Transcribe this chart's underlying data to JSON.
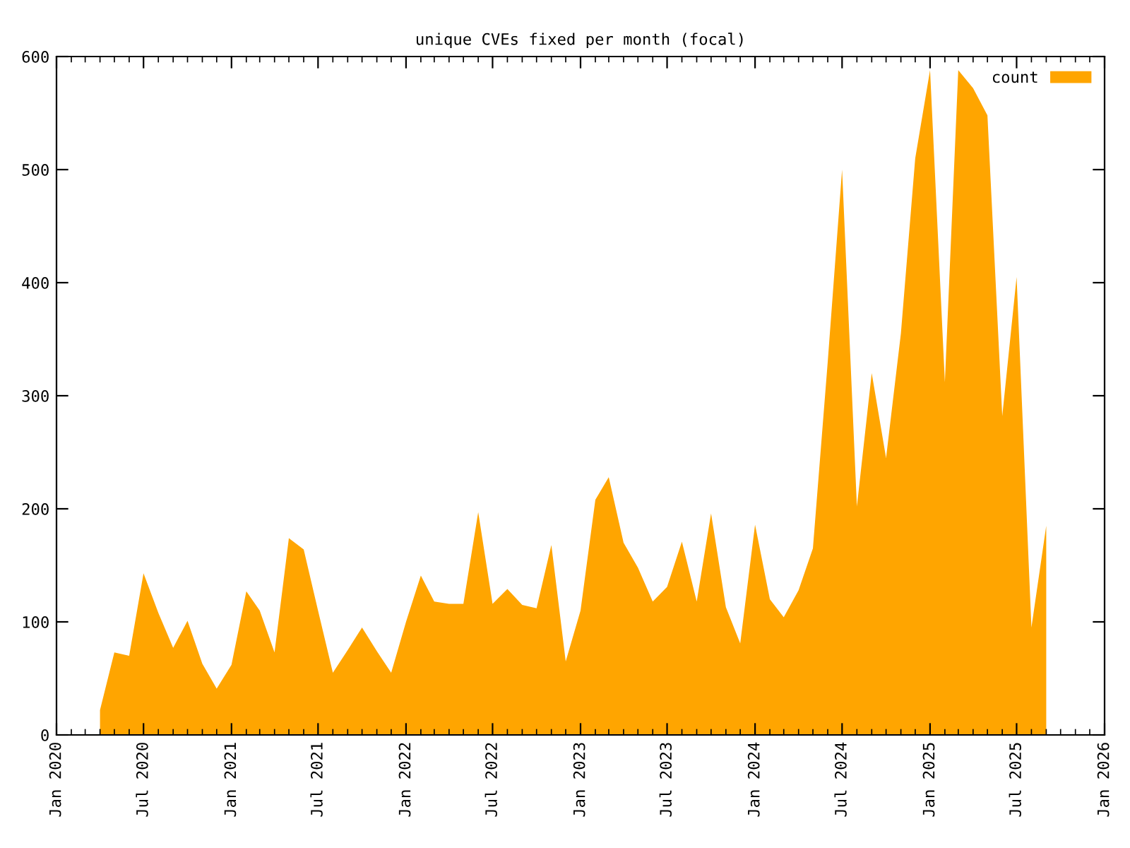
{
  "chart_data": {
    "type": "area",
    "title": "unique CVEs fixed per month (focal)",
    "x": [
      "2020-04",
      "2020-05",
      "2020-06",
      "2020-07",
      "2020-08",
      "2020-09",
      "2020-10",
      "2020-11",
      "2020-12",
      "2021-01",
      "2021-02",
      "2021-03",
      "2021-04",
      "2021-05",
      "2021-06",
      "2021-07",
      "2021-08",
      "2021-09",
      "2021-10",
      "2021-11",
      "2021-12",
      "2022-01",
      "2022-02",
      "2022-03",
      "2022-04",
      "2022-05",
      "2022-06",
      "2022-07",
      "2022-08",
      "2022-09",
      "2022-10",
      "2022-11",
      "2022-12",
      "2023-01",
      "2023-02",
      "2023-03",
      "2023-04",
      "2023-05",
      "2023-06",
      "2023-07",
      "2023-08",
      "2023-09",
      "2023-10",
      "2023-11",
      "2023-12",
      "2024-01",
      "2024-02",
      "2024-03",
      "2024-04",
      "2024-05",
      "2024-06",
      "2024-07",
      "2024-08",
      "2024-09",
      "2024-10",
      "2024-11",
      "2024-12",
      "2025-01",
      "2025-02",
      "2025-03",
      "2025-04",
      "2025-05",
      "2025-06",
      "2025-07",
      "2025-08",
      "2025-09"
    ],
    "series": [
      {
        "name": "count",
        "color": "#ffa500",
        "values": [
          22,
          73,
          70,
          143,
          108,
          77,
          101,
          63,
          41,
          62,
          127,
          110,
          73,
          174,
          164,
          110,
          55,
          75,
          95,
          74,
          55,
          100,
          141,
          118,
          116,
          116,
          197,
          116,
          129,
          115,
          112,
          168,
          65,
          110,
          208,
          228,
          170,
          148,
          118,
          131,
          171,
          118,
          196,
          113,
          81,
          186,
          120,
          104,
          128,
          165,
          330,
          500,
          202,
          320,
          245,
          355,
          510,
          588,
          312,
          588,
          572,
          548,
          282,
          405,
          95,
          185
        ]
      }
    ],
    "ylim": [
      0,
      600
    ],
    "yticks": [
      0,
      100,
      200,
      300,
      400,
      500,
      600
    ],
    "xlim": [
      "2020-01",
      "2026-01"
    ],
    "xticks": [
      {
        "value": "2020-01",
        "label": "Jan 2020"
      },
      {
        "value": "2020-07",
        "label": "Jul 2020"
      },
      {
        "value": "2021-01",
        "label": "Jan 2021"
      },
      {
        "value": "2021-07",
        "label": "Jul 2021"
      },
      {
        "value": "2022-01",
        "label": "Jan 2022"
      },
      {
        "value": "2022-07",
        "label": "Jul 2022"
      },
      {
        "value": "2023-01",
        "label": "Jan 2023"
      },
      {
        "value": "2023-07",
        "label": "Jul 2023"
      },
      {
        "value": "2024-01",
        "label": "Jan 2024"
      },
      {
        "value": "2024-07",
        "label": "Jul 2024"
      },
      {
        "value": "2025-01",
        "label": "Jan 2025"
      },
      {
        "value": "2025-07",
        "label": "Jul 2025"
      },
      {
        "value": "2026-01",
        "label": "Jan 2026"
      }
    ],
    "legend": "top right",
    "grid": false
  }
}
